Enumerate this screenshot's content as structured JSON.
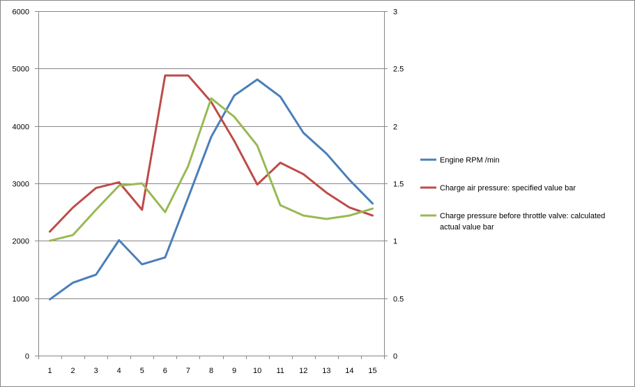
{
  "chart_data": {
    "type": "line",
    "x": [
      1,
      2,
      3,
      4,
      5,
      6,
      7,
      8,
      9,
      10,
      11,
      12,
      13,
      14,
      15
    ],
    "xlabel": "",
    "ylabel": "",
    "y_left": {
      "lim": [
        0,
        6000
      ],
      "ticks": [
        "0",
        "1000",
        "2000",
        "3000",
        "4000",
        "5000",
        "6000"
      ]
    },
    "y_right": {
      "lim": [
        0,
        3
      ],
      "ticks": [
        "0",
        "0.5",
        "1",
        "1.5",
        "2",
        "2.5",
        "3"
      ]
    },
    "grid": true,
    "legend_position": "right",
    "series": [
      {
        "name": "Engine RPM  /min",
        "axis": "left",
        "color": "#4A7EBB",
        "values": [
          980,
          1270,
          1410,
          2010,
          1590,
          1710,
          2750,
          3810,
          4530,
          4810,
          4510,
          3880,
          3520,
          3060,
          2650
        ]
      },
      {
        "name": "Charge air pressure: specified value  bar",
        "axis": "right",
        "color": "#BE4B48",
        "values": [
          1.08,
          1.29,
          1.46,
          1.51,
          1.27,
          2.44,
          2.44,
          2.21,
          1.87,
          1.49,
          1.68,
          1.58,
          1.42,
          1.29,
          1.22
        ]
      },
      {
        "name": "Charge pressure before throttle valve: calculated actual value  bar",
        "name_lines": [
          "Charge pressure before throttle valve: calculated",
          "actual value  bar"
        ],
        "axis": "right",
        "color": "#98B954",
        "values": [
          1.0,
          1.05,
          1.27,
          1.48,
          1.5,
          1.25,
          1.65,
          2.24,
          2.08,
          1.83,
          1.31,
          1.22,
          1.19,
          1.22,
          1.28
        ]
      }
    ]
  }
}
